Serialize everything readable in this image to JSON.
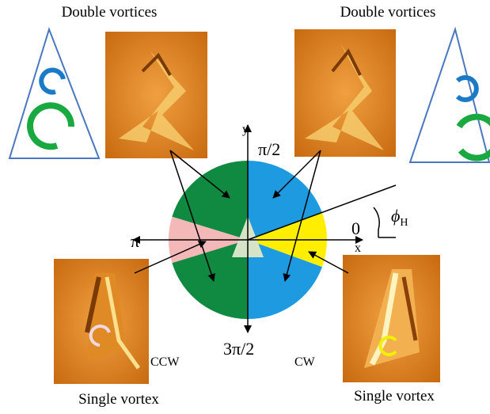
{
  "labels": {
    "top_left": "Double vortices",
    "top_right": "Double vortices",
    "bottom_left": "Single vortex",
    "bottom_right": "Single vortex",
    "ccw": "CCW",
    "cw": "CW"
  },
  "axes": {
    "y": "y",
    "x": "x",
    "angle_90": "π/2",
    "angle_0": "0",
    "angle_180": "π",
    "angle_270": "3π/2",
    "field_angle": "ϕ",
    "field_angle_subscript": "H"
  }
}
